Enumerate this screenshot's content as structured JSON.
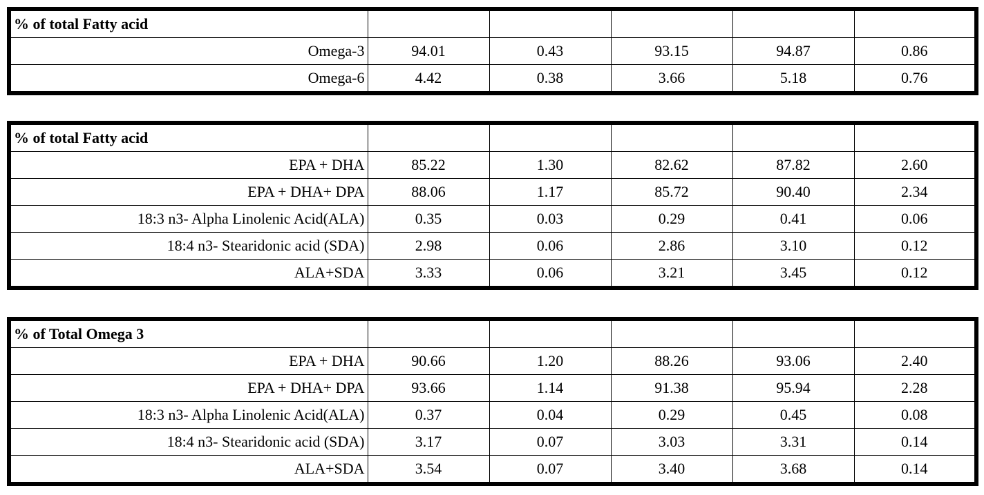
{
  "tables": [
    {
      "header": "% of total Fatty acid",
      "rows": [
        {
          "label": "Omega-3",
          "values": [
            "94.01",
            "0.43",
            "93.15",
            "94.87",
            "0.86"
          ]
        },
        {
          "label": "Omega-6",
          "values": [
            "4.42",
            "0.38",
            "3.66",
            "5.18",
            "0.76"
          ]
        }
      ]
    },
    {
      "header": "% of total Fatty acid",
      "rows": [
        {
          "label": "EPA + DHA",
          "values": [
            "85.22",
            "1.30",
            "82.62",
            "87.82",
            "2.60"
          ]
        },
        {
          "label": "EPA + DHA+ DPA",
          "values": [
            "88.06",
            "1.17",
            "85.72",
            "90.40",
            "2.34"
          ]
        },
        {
          "label": "18:3 n3- Alpha Linolenic Acid(ALA)",
          "values": [
            "0.35",
            "0.03",
            "0.29",
            "0.41",
            "0.06"
          ]
        },
        {
          "label": "18:4 n3- Stearidonic acid (SDA)",
          "values": [
            "2.98",
            "0.06",
            "2.86",
            "3.10",
            "0.12"
          ]
        },
        {
          "label": "ALA+SDA",
          "values": [
            "3.33",
            "0.06",
            "3.21",
            "3.45",
            "0.12"
          ]
        }
      ]
    },
    {
      "header": "% of Total Omega 3",
      "rows": [
        {
          "label": "EPA + DHA",
          "values": [
            "90.66",
            "1.20",
            "88.26",
            "93.06",
            "2.40"
          ]
        },
        {
          "label": "EPA + DHA+ DPA",
          "values": [
            "93.66",
            "1.14",
            "91.38",
            "95.94",
            "2.28"
          ]
        },
        {
          "label": "18:3 n3- Alpha Linolenic Acid(ALA)",
          "values": [
            "0.37",
            "0.04",
            "0.29",
            "0.45",
            "0.08"
          ]
        },
        {
          "label": "18:4 n3- Stearidonic acid (SDA)",
          "values": [
            "3.17",
            "0.07",
            "3.03",
            "3.31",
            "0.14"
          ]
        },
        {
          "label": "ALA+SDA",
          "values": [
            "3.54",
            "0.07",
            "3.40",
            "3.68",
            "0.14"
          ]
        }
      ]
    }
  ]
}
